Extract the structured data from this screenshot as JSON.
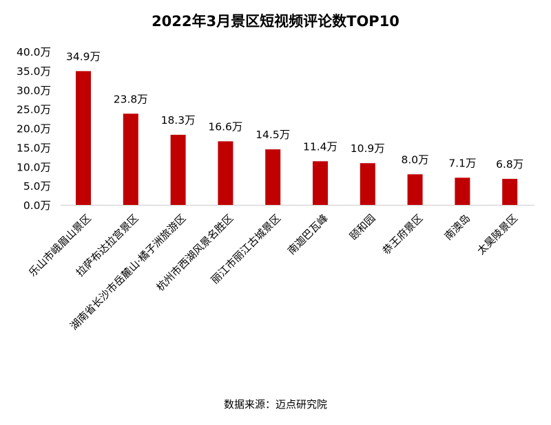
{
  "chart_data": {
    "type": "bar",
    "title": "2022年3月景区短视频评论数TOP10",
    "unit_suffix": "万",
    "categories": [
      "乐山市峨眉山景区",
      "拉萨布达拉宫景区",
      "湖南省长沙市岳麓山·橘子洲旅游区",
      "杭州市西湖风景名胜区",
      "丽江市丽江古城景区",
      "南迦巴瓦峰",
      "颐和园",
      "恭王府景区",
      "南澳岛",
      "太昊陵景区"
    ],
    "values": [
      34.9,
      23.8,
      18.3,
      16.6,
      14.5,
      11.4,
      10.9,
      8.0,
      7.1,
      6.8
    ],
    "data_labels": [
      "34.9万",
      "23.8万",
      "18.3万",
      "16.6万",
      "14.5万",
      "11.4万",
      "10.9万",
      "8.0万",
      "7.1万",
      "6.8万"
    ],
    "yticks": [
      "0.0万",
      "5.0万",
      "10.0万",
      "15.0万",
      "20.0万",
      "25.0万",
      "30.0万",
      "35.0万",
      "40.0万"
    ],
    "ytick_values": [
      0,
      5,
      10,
      15,
      20,
      25,
      30,
      35,
      40
    ],
    "ylim": [
      0,
      40
    ],
    "grid": false,
    "bar_color": "#c00000",
    "source": "数据来源：迈点研究院"
  }
}
